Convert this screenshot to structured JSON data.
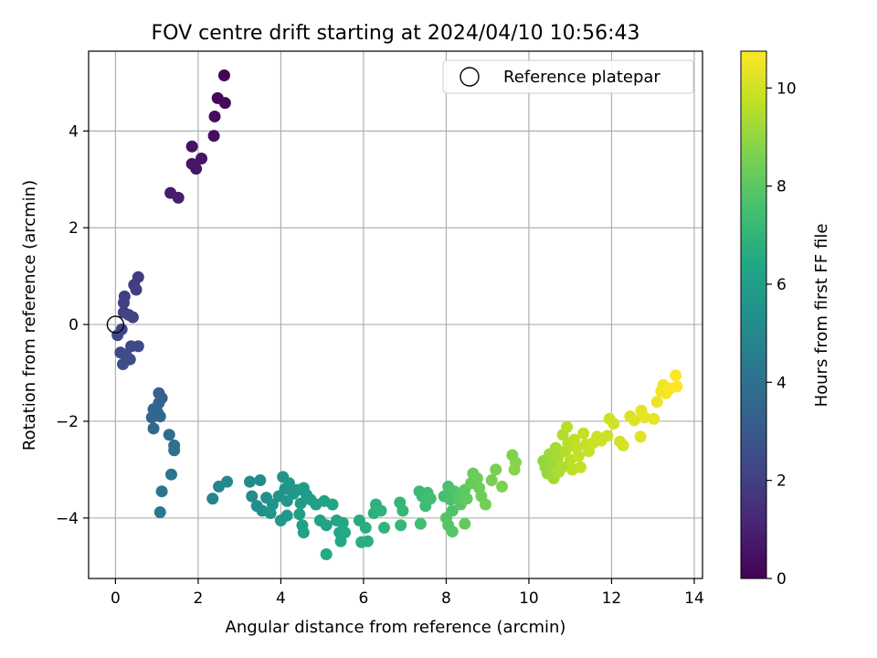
{
  "chart_data": {
    "type": "scatter",
    "title": "FOV centre drift starting at 2024/04/10 10:56:43",
    "xlabel": "Angular distance from reference (arcmin)",
    "ylabel": "Rotation from reference (arcmin)",
    "xlim": [
      -0.65,
      14.2
    ],
    "ylim": [
      -5.25,
      5.65
    ],
    "xticks": [
      0,
      2,
      4,
      6,
      8,
      10,
      12,
      14
    ],
    "yticks": [
      -4,
      -2,
      0,
      2,
      4
    ],
    "grid": true,
    "legend": {
      "position": "top-right",
      "entries": [
        {
          "label": "Reference platepar",
          "marker": "hollow-circle"
        }
      ]
    },
    "reference_point": {
      "x": 0,
      "y": 0
    },
    "colorbar": {
      "label": "Hours from first FF file",
      "colormap": "viridis",
      "range": [
        0,
        10.75
      ],
      "ticks": [
        0,
        2,
        4,
        6,
        8,
        10
      ]
    },
    "points": [
      {
        "x": 2.63,
        "y": 5.15,
        "t": 0.1
      },
      {
        "x": 2.47,
        "y": 4.68,
        "t": 0.2
      },
      {
        "x": 2.65,
        "y": 4.58,
        "t": 0.25
      },
      {
        "x": 2.4,
        "y": 4.3,
        "t": 0.3
      },
      {
        "x": 2.38,
        "y": 3.9,
        "t": 0.4
      },
      {
        "x": 1.85,
        "y": 3.68,
        "t": 0.5
      },
      {
        "x": 2.08,
        "y": 3.43,
        "t": 0.55
      },
      {
        "x": 1.85,
        "y": 3.32,
        "t": 0.6
      },
      {
        "x": 1.95,
        "y": 3.22,
        "t": 0.65
      },
      {
        "x": 1.33,
        "y": 2.72,
        "t": 0.8
      },
      {
        "x": 1.52,
        "y": 2.62,
        "t": 0.85
      },
      {
        "x": 0.55,
        "y": 0.98,
        "t": 1.8
      },
      {
        "x": 0.45,
        "y": 0.82,
        "t": 1.85
      },
      {
        "x": 0.5,
        "y": 0.72,
        "t": 1.9
      },
      {
        "x": 0.22,
        "y": 0.58,
        "t": 1.95
      },
      {
        "x": 0.2,
        "y": 0.45,
        "t": 2.0
      },
      {
        "x": 0.2,
        "y": 0.25,
        "t": 2.05
      },
      {
        "x": 0.32,
        "y": 0.2,
        "t": 2.1
      },
      {
        "x": 0.42,
        "y": 0.15,
        "t": 2.15
      },
      {
        "x": 0.15,
        "y": -0.1,
        "t": 2.2
      },
      {
        "x": 0.05,
        "y": -0.22,
        "t": 2.25
      },
      {
        "x": 0.38,
        "y": -0.45,
        "t": 2.3
      },
      {
        "x": 0.55,
        "y": -0.45,
        "t": 2.35
      },
      {
        "x": 0.12,
        "y": -0.58,
        "t": 2.4
      },
      {
        "x": 0.25,
        "y": -0.62,
        "t": 2.45
      },
      {
        "x": 0.35,
        "y": -0.72,
        "t": 2.5
      },
      {
        "x": 0.18,
        "y": -0.82,
        "t": 2.55
      },
      {
        "x": 1.05,
        "y": -1.42,
        "t": 3.3
      },
      {
        "x": 1.12,
        "y": -1.52,
        "t": 3.35
      },
      {
        "x": 1.05,
        "y": -1.62,
        "t": 3.4
      },
      {
        "x": 0.92,
        "y": -1.75,
        "t": 3.45
      },
      {
        "x": 1.02,
        "y": -1.82,
        "t": 3.5
      },
      {
        "x": 0.88,
        "y": -1.92,
        "t": 3.55
      },
      {
        "x": 1.08,
        "y": -1.9,
        "t": 3.6
      },
      {
        "x": 0.92,
        "y": -2.15,
        "t": 3.65
      },
      {
        "x": 1.3,
        "y": -2.28,
        "t": 3.8
      },
      {
        "x": 1.42,
        "y": -2.5,
        "t": 3.9
      },
      {
        "x": 1.42,
        "y": -2.6,
        "t": 3.95
      },
      {
        "x": 1.35,
        "y": -3.1,
        "t": 4.1
      },
      {
        "x": 1.12,
        "y": -3.45,
        "t": 4.2
      },
      {
        "x": 1.08,
        "y": -3.88,
        "t": 4.3
      },
      {
        "x": 2.35,
        "y": -3.6,
        "t": 4.8
      },
      {
        "x": 2.5,
        "y": -3.35,
        "t": 4.9
      },
      {
        "x": 2.7,
        "y": -3.25,
        "t": 5.0
      },
      {
        "x": 3.25,
        "y": -3.25,
        "t": 5.1
      },
      {
        "x": 3.3,
        "y": -3.55,
        "t": 5.15
      },
      {
        "x": 3.5,
        "y": -3.22,
        "t": 5.2
      },
      {
        "x": 3.42,
        "y": -3.75,
        "t": 5.25
      },
      {
        "x": 3.55,
        "y": -3.85,
        "t": 5.3
      },
      {
        "x": 3.65,
        "y": -3.58,
        "t": 5.35
      },
      {
        "x": 3.8,
        "y": -3.72,
        "t": 5.4
      },
      {
        "x": 3.95,
        "y": -3.55,
        "t": 5.45
      },
      {
        "x": 4.05,
        "y": -3.15,
        "t": 5.5
      },
      {
        "x": 4.1,
        "y": -3.4,
        "t": 5.55
      },
      {
        "x": 4.15,
        "y": -3.65,
        "t": 5.6
      },
      {
        "x": 4.2,
        "y": -3.28,
        "t": 5.65
      },
      {
        "x": 4.3,
        "y": -3.5,
        "t": 5.7
      },
      {
        "x": 4.4,
        "y": -3.42,
        "t": 5.75
      },
      {
        "x": 4.48,
        "y": -3.7,
        "t": 5.8
      },
      {
        "x": 4.55,
        "y": -3.38,
        "t": 5.85
      },
      {
        "x": 4.62,
        "y": -3.52,
        "t": 5.9
      },
      {
        "x": 4.72,
        "y": -3.62,
        "t": 5.95
      },
      {
        "x": 4.45,
        "y": -3.92,
        "t": 6.0
      },
      {
        "x": 4.52,
        "y": -4.15,
        "t": 6.05
      },
      {
        "x": 4.55,
        "y": -4.3,
        "t": 6.1
      },
      {
        "x": 4.0,
        "y": -4.05,
        "t": 5.6
      },
      {
        "x": 4.15,
        "y": -3.95,
        "t": 5.7
      },
      {
        "x": 3.75,
        "y": -3.9,
        "t": 5.5
      },
      {
        "x": 4.85,
        "y": -3.72,
        "t": 6.05
      },
      {
        "x": 4.95,
        "y": -4.05,
        "t": 6.1
      },
      {
        "x": 5.05,
        "y": -3.65,
        "t": 6.15
      },
      {
        "x": 5.1,
        "y": -4.15,
        "t": 6.2
      },
      {
        "x": 5.25,
        "y": -3.72,
        "t": 6.25
      },
      {
        "x": 5.35,
        "y": -4.05,
        "t": 6.3
      },
      {
        "x": 5.42,
        "y": -4.3,
        "t": 6.35
      },
      {
        "x": 5.5,
        "y": -4.1,
        "t": 6.4
      },
      {
        "x": 5.45,
        "y": -4.48,
        "t": 6.45
      },
      {
        "x": 5.1,
        "y": -4.75,
        "t": 6.5
      },
      {
        "x": 5.55,
        "y": -4.3,
        "t": 6.5
      },
      {
        "x": 5.9,
        "y": -4.05,
        "t": 6.6
      },
      {
        "x": 6.05,
        "y": -4.2,
        "t": 6.65
      },
      {
        "x": 5.95,
        "y": -4.5,
        "t": 6.7
      },
      {
        "x": 6.1,
        "y": -4.48,
        "t": 6.75
      },
      {
        "x": 6.25,
        "y": -3.9,
        "t": 6.8
      },
      {
        "x": 6.3,
        "y": -3.72,
        "t": 6.85
      },
      {
        "x": 6.42,
        "y": -3.85,
        "t": 6.9
      },
      {
        "x": 6.5,
        "y": -4.2,
        "t": 6.95
      },
      {
        "x": 6.88,
        "y": -3.68,
        "t": 7.05
      },
      {
        "x": 6.95,
        "y": -3.85,
        "t": 7.1
      },
      {
        "x": 6.9,
        "y": -4.15,
        "t": 7.15
      },
      {
        "x": 7.35,
        "y": -3.45,
        "t": 7.25
      },
      {
        "x": 7.42,
        "y": -3.55,
        "t": 7.3
      },
      {
        "x": 7.5,
        "y": -3.75,
        "t": 7.35
      },
      {
        "x": 7.55,
        "y": -3.48,
        "t": 7.4
      },
      {
        "x": 7.62,
        "y": -3.6,
        "t": 7.45
      },
      {
        "x": 7.38,
        "y": -4.12,
        "t": 7.5
      },
      {
        "x": 7.95,
        "y": -3.55,
        "t": 7.55
      },
      {
        "x": 8.05,
        "y": -3.35,
        "t": 7.6
      },
      {
        "x": 8.1,
        "y": -3.62,
        "t": 7.65
      },
      {
        "x": 8.15,
        "y": -3.85,
        "t": 7.7
      },
      {
        "x": 8.2,
        "y": -3.45,
        "t": 7.75
      },
      {
        "x": 8.0,
        "y": -4.0,
        "t": 7.8
      },
      {
        "x": 8.05,
        "y": -4.15,
        "t": 7.85
      },
      {
        "x": 8.15,
        "y": -4.28,
        "t": 7.9
      },
      {
        "x": 8.3,
        "y": -3.55,
        "t": 7.95
      },
      {
        "x": 8.35,
        "y": -3.72,
        "t": 8.0
      },
      {
        "x": 8.45,
        "y": -3.42,
        "t": 8.05
      },
      {
        "x": 8.5,
        "y": -3.6,
        "t": 8.1
      },
      {
        "x": 8.45,
        "y": -4.12,
        "t": 8.15
      },
      {
        "x": 8.6,
        "y": -3.28,
        "t": 8.2
      },
      {
        "x": 8.65,
        "y": -3.08,
        "t": 8.25
      },
      {
        "x": 8.75,
        "y": -3.18,
        "t": 8.3
      },
      {
        "x": 8.8,
        "y": -3.38,
        "t": 8.35
      },
      {
        "x": 8.85,
        "y": -3.55,
        "t": 8.4
      },
      {
        "x": 8.95,
        "y": -3.72,
        "t": 8.45
      },
      {
        "x": 9.1,
        "y": -3.22,
        "t": 8.5
      },
      {
        "x": 9.2,
        "y": -3.0,
        "t": 8.55
      },
      {
        "x": 9.35,
        "y": -3.35,
        "t": 8.6
      },
      {
        "x": 9.6,
        "y": -2.7,
        "t": 8.7
      },
      {
        "x": 9.68,
        "y": -2.85,
        "t": 8.75
      },
      {
        "x": 9.65,
        "y": -3.0,
        "t": 8.8
      },
      {
        "x": 10.35,
        "y": -2.82,
        "t": 9.0
      },
      {
        "x": 10.4,
        "y": -2.95,
        "t": 9.05
      },
      {
        "x": 10.45,
        "y": -3.08,
        "t": 9.1
      },
      {
        "x": 10.5,
        "y": -2.68,
        "t": 9.15
      },
      {
        "x": 10.55,
        "y": -2.88,
        "t": 9.2
      },
      {
        "x": 10.6,
        "y": -3.18,
        "t": 9.25
      },
      {
        "x": 10.65,
        "y": -2.55,
        "t": 9.3
      },
      {
        "x": 10.7,
        "y": -2.75,
        "t": 9.35
      },
      {
        "x": 10.72,
        "y": -3.05,
        "t": 9.4
      },
      {
        "x": 10.8,
        "y": -2.95,
        "t": 9.45
      },
      {
        "x": 10.82,
        "y": -2.28,
        "t": 9.5
      },
      {
        "x": 10.88,
        "y": -2.62,
        "t": 9.55
      },
      {
        "x": 10.92,
        "y": -2.12,
        "t": 9.6
      },
      {
        "x": 10.95,
        "y": -2.45,
        "t": 9.62
      },
      {
        "x": 11.0,
        "y": -2.8,
        "t": 9.65
      },
      {
        "x": 11.05,
        "y": -3.0,
        "t": 9.68
      },
      {
        "x": 11.1,
        "y": -2.38,
        "t": 9.7
      },
      {
        "x": 11.15,
        "y": -2.55,
        "t": 9.72
      },
      {
        "x": 11.2,
        "y": -2.72,
        "t": 9.75
      },
      {
        "x": 11.25,
        "y": -2.95,
        "t": 9.78
      },
      {
        "x": 11.32,
        "y": -2.25,
        "t": 9.8
      },
      {
        "x": 11.38,
        "y": -2.48,
        "t": 9.82
      },
      {
        "x": 11.45,
        "y": -2.62,
        "t": 9.85
      },
      {
        "x": 11.55,
        "y": -2.45,
        "t": 9.88
      },
      {
        "x": 11.65,
        "y": -2.32,
        "t": 9.9
      },
      {
        "x": 11.75,
        "y": -2.4,
        "t": 9.92
      },
      {
        "x": 11.9,
        "y": -2.3,
        "t": 9.95
      },
      {
        "x": 11.95,
        "y": -1.95,
        "t": 9.98
      },
      {
        "x": 12.05,
        "y": -2.05,
        "t": 10.0
      },
      {
        "x": 12.2,
        "y": -2.42,
        "t": 10.05
      },
      {
        "x": 12.28,
        "y": -2.5,
        "t": 10.08
      },
      {
        "x": 12.45,
        "y": -1.9,
        "t": 10.15
      },
      {
        "x": 12.55,
        "y": -1.98,
        "t": 10.2
      },
      {
        "x": 12.7,
        "y": -2.32,
        "t": 10.25
      },
      {
        "x": 12.72,
        "y": -1.78,
        "t": 10.3
      },
      {
        "x": 12.8,
        "y": -1.92,
        "t": 10.35
      },
      {
        "x": 13.02,
        "y": -1.95,
        "t": 10.4
      },
      {
        "x": 13.1,
        "y": -1.6,
        "t": 10.45
      },
      {
        "x": 13.2,
        "y": -1.38,
        "t": 10.5
      },
      {
        "x": 13.25,
        "y": -1.25,
        "t": 10.55
      },
      {
        "x": 13.32,
        "y": -1.42,
        "t": 10.6
      },
      {
        "x": 13.42,
        "y": -1.32,
        "t": 10.65
      },
      {
        "x": 13.55,
        "y": -1.05,
        "t": 10.7
      },
      {
        "x": 13.58,
        "y": -1.28,
        "t": 10.75
      }
    ]
  }
}
